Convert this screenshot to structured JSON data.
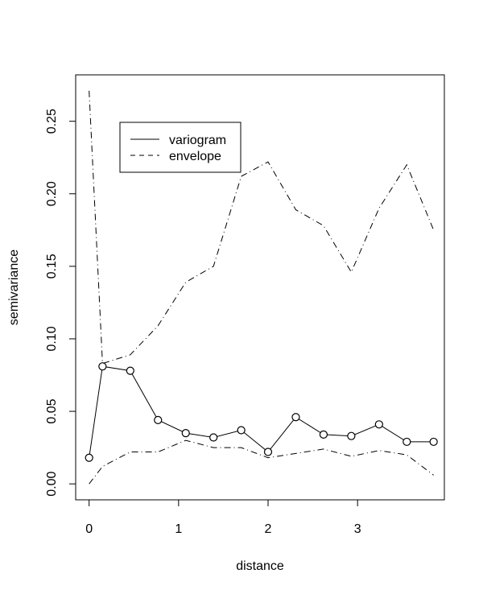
{
  "chart_data": {
    "type": "line",
    "title": "",
    "xlabel": "distance",
    "ylabel": "semivariance",
    "xlim": [
      -0.15,
      3.97
    ],
    "ylim": [
      -0.011,
      0.282
    ],
    "xticks": [
      0,
      1,
      2,
      3
    ],
    "xtick_labels": [
      "0",
      "1",
      "2",
      "3"
    ],
    "yticks": [
      0.0,
      0.05,
      0.1,
      0.15,
      0.2,
      0.25
    ],
    "ytick_labels": [
      "0.00",
      "0.05",
      "0.10",
      "0.15",
      "0.20",
      "0.25"
    ],
    "grid": false,
    "legend": {
      "position": "top-left",
      "entries": [
        {
          "label": "variogram",
          "style": "solid"
        },
        {
          "label": "envelope",
          "style": "dashed"
        }
      ]
    },
    "x": [
      0,
      0.15,
      0.46,
      0.77,
      1.08,
      1.39,
      1.7,
      2.0,
      2.31,
      2.62,
      2.93,
      3.24,
      3.55,
      3.85
    ],
    "series": [
      {
        "name": "variogram",
        "style": "solid-with-circles",
        "values": [
          0.018,
          0.081,
          0.078,
          0.044,
          0.035,
          0.032,
          0.037,
          0.022,
          0.046,
          0.034,
          0.033,
          0.041,
          0.029,
          0.029
        ]
      },
      {
        "name": "envelope",
        "style": "dash-dot",
        "values": [
          0.271,
          0.083,
          0.089,
          0.109,
          0.139,
          0.15,
          0.212,
          0.222,
          0.189,
          0.178,
          0.146,
          0.19,
          0.22,
          0.175
        ]
      },
      {
        "name": "envelope",
        "style": "dash-dot",
        "values": [
          0.0,
          0.012,
          0.022,
          0.022,
          0.03,
          0.025,
          0.025,
          0.018,
          0.021,
          0.024,
          0.019,
          0.023,
          0.02,
          0.006
        ]
      }
    ]
  }
}
